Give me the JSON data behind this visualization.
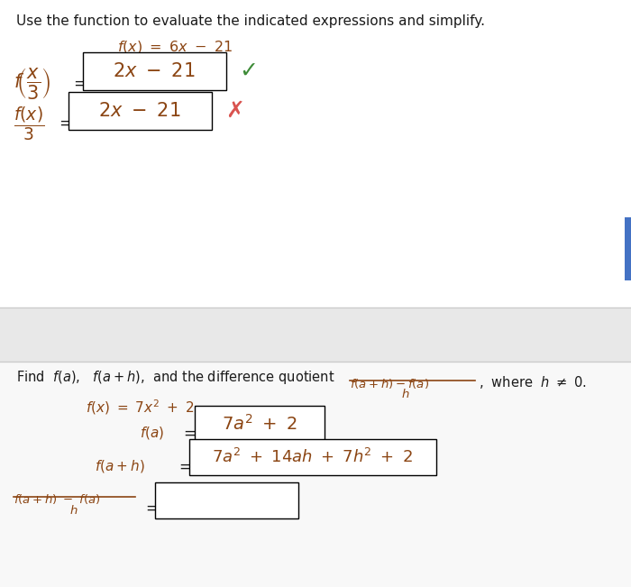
{
  "text_color": "#1a1a1a",
  "red_color": "#d9534f",
  "green_color": "#3d8b37",
  "italic_color": "#8B4513",
  "title1": "Use the function to evaluate the indicated expressions and simplify.",
  "top_bg": "#ffffff",
  "bottom_bg": "#f0f0f0",
  "mid_bg": "#e8e8e8",
  "bar_color": "#4472c4"
}
